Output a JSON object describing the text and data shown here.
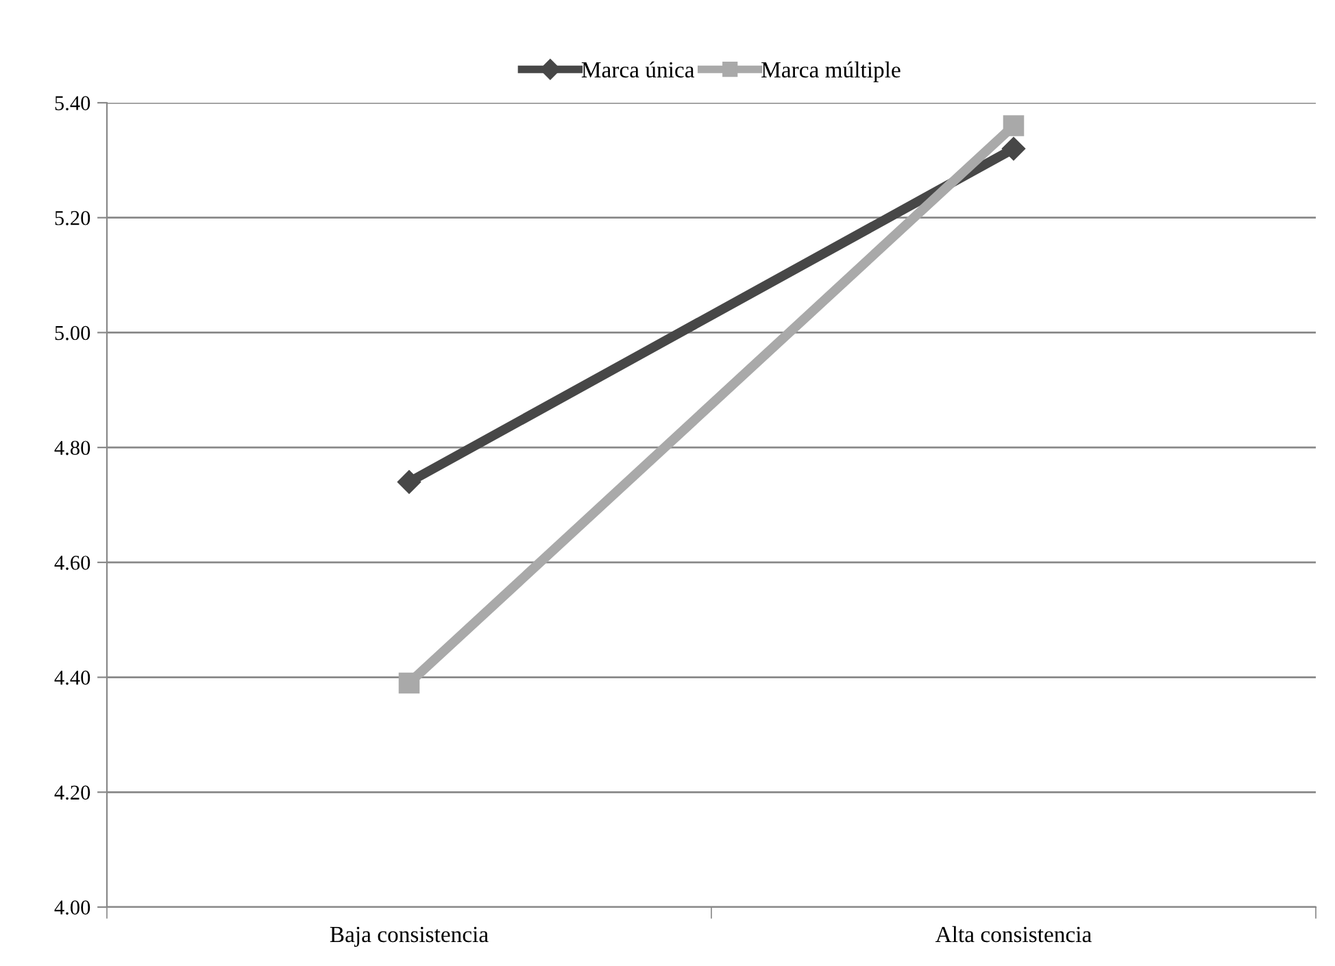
{
  "chart_data": {
    "type": "line",
    "categories": [
      "Baja consistencia",
      "Alta consistencia"
    ],
    "series": [
      {
        "name": "Marca única",
        "color": "#474747",
        "values": [
          4.74,
          5.32
        ],
        "marker": "diamond"
      },
      {
        "name": "Marca múltiple",
        "color": "#a9a9a9",
        "values": [
          4.39,
          5.36
        ],
        "marker": "square"
      }
    ],
    "ylim": [
      4.0,
      5.4
    ],
    "yticks": [
      {
        "value": 4.0,
        "label": "4.00"
      },
      {
        "value": 4.2,
        "label": "4.20"
      },
      {
        "value": 4.4,
        "label": "4.40"
      },
      {
        "value": 4.6,
        "label": "4.60"
      },
      {
        "value": 4.8,
        "label": "4.80"
      },
      {
        "value": 5.0,
        "label": "5.00"
      },
      {
        "value": 5.2,
        "label": "5.20"
      },
      {
        "value": 5.4,
        "label": "5.40"
      }
    ],
    "grid": "y",
    "legend": "top",
    "line_style": "solid"
  }
}
